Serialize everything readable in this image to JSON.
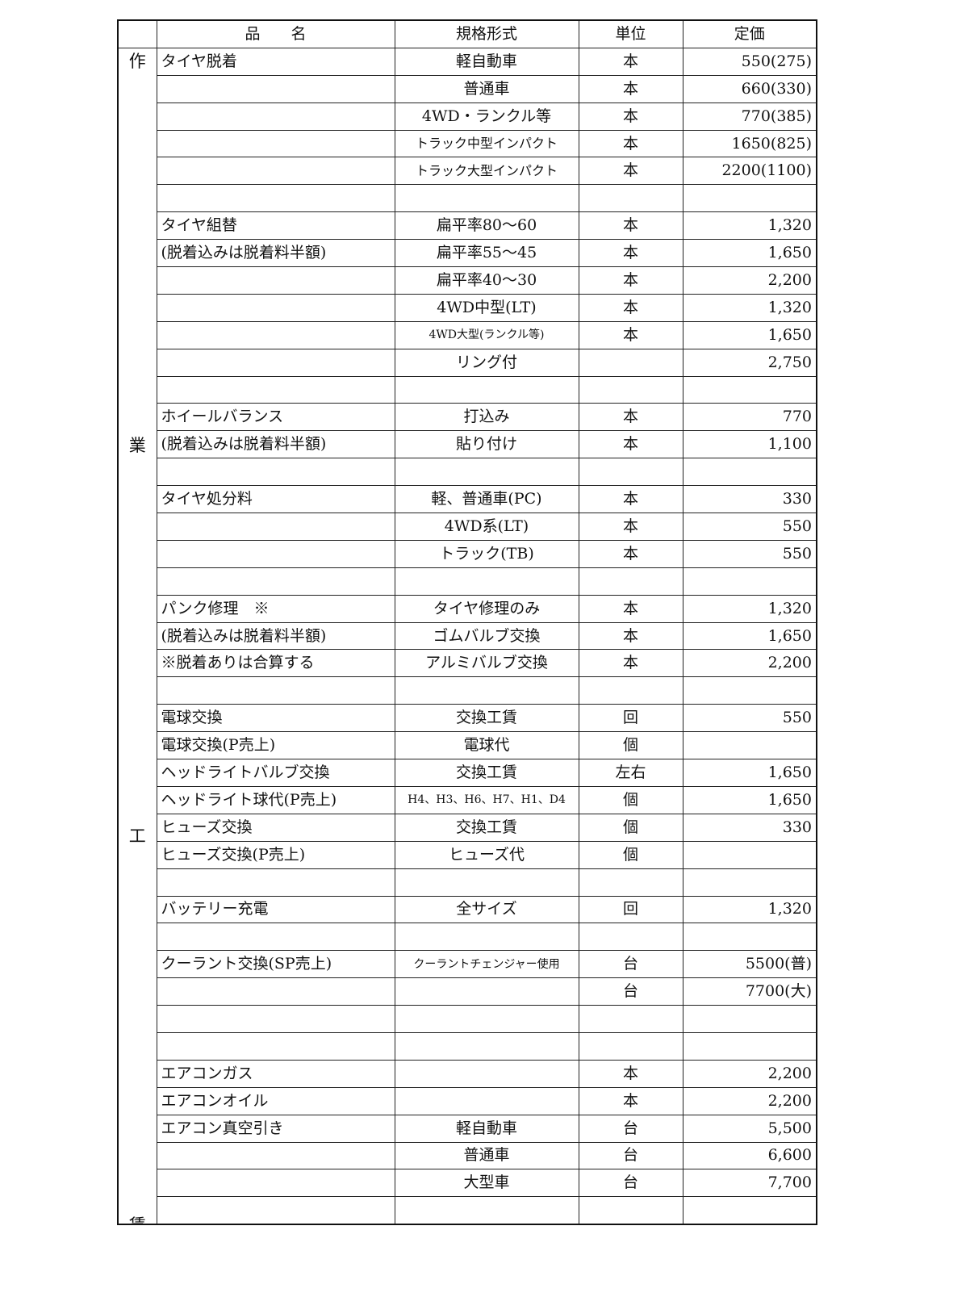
{
  "header": {
    "name": "品　　名",
    "spec": "規格形式",
    "unit": "単位",
    "price": "定価"
  },
  "side_label": [
    "作",
    "業",
    "工",
    "賃"
  ],
  "rows": [
    {
      "name": "タイヤ脱着",
      "spec": "軽自動車",
      "unit": "本",
      "price": "550(275)"
    },
    {
      "name": "",
      "spec": "普通車",
      "unit": "本",
      "price": "660(330)"
    },
    {
      "name": "",
      "spec": "4WD・ランクル等",
      "unit": "本",
      "price": "770(385)"
    },
    {
      "name": "",
      "spec": "トラック中型インパクト",
      "unit": "本",
      "price": "1650(825)"
    },
    {
      "name": "",
      "spec": "トラック大型インパクト",
      "unit": "本",
      "price": "2200(1100)"
    },
    {
      "name": "",
      "spec": "",
      "unit": "",
      "price": ""
    },
    {
      "name": "タイヤ組替",
      "spec": "扁平率80～60",
      "unit": "本",
      "price": "1,320"
    },
    {
      "name": "(脱着込みは脱着料半額)",
      "spec": "扁平率55～45",
      "unit": "本",
      "price": "1,650"
    },
    {
      "name": "",
      "spec": "扁平率40～30",
      "unit": "本",
      "price": "2,200"
    },
    {
      "name": "",
      "spec": "4WD中型(LT)",
      "unit": "本",
      "price": "1,320"
    },
    {
      "name": "",
      "spec": "4WD大型(ランクル等)",
      "unit": "本",
      "price": "1,650"
    },
    {
      "name": "",
      "spec": "リング付",
      "unit": "",
      "price": "2,750"
    },
    {
      "name": "",
      "spec": "",
      "unit": "",
      "price": ""
    },
    {
      "name": "ホイールバランス",
      "spec": "打込み",
      "unit": "本",
      "price": "770"
    },
    {
      "name": "(脱着込みは脱着料半額)",
      "spec": "貼り付け",
      "unit": "本",
      "price": "1,100"
    },
    {
      "name": "",
      "spec": "",
      "unit": "",
      "price": ""
    },
    {
      "name": "タイヤ処分料",
      "spec": "軽、普通車(PC)",
      "unit": "本",
      "price": "330"
    },
    {
      "name": "",
      "spec": "4WD系(LT)",
      "unit": "本",
      "price": "550"
    },
    {
      "name": "",
      "spec": "トラック(TB)",
      "unit": "本",
      "price": "550"
    },
    {
      "name": "",
      "spec": "",
      "unit": "",
      "price": ""
    },
    {
      "name": "パンク修理　※",
      "spec": "タイヤ修理のみ",
      "unit": "本",
      "price": "1,320"
    },
    {
      "name": "(脱着込みは脱着料半額)",
      "spec": "ゴムバルブ交換",
      "unit": "本",
      "price": "1,650"
    },
    {
      "name": "※脱着ありは合算する",
      "spec": "アルミバルブ交換",
      "unit": "本",
      "price": "2,200"
    },
    {
      "name": "",
      "spec": "",
      "unit": "",
      "price": ""
    },
    {
      "name": "電球交換",
      "spec": "交換工賃",
      "unit": "回",
      "price": "550"
    },
    {
      "name": "電球交換(P売上)",
      "spec": "電球代",
      "unit": "個",
      "price": ""
    },
    {
      "name": "ヘッドライトバルブ交換",
      "spec": "交換工賃",
      "unit": "左右",
      "price": "1,650"
    },
    {
      "name": "ヘッドライト球代(P売上)",
      "spec": "H4、H3、H6、H7、H1、D4",
      "unit": "個",
      "price": "1,650"
    },
    {
      "name": "ヒューズ交換",
      "spec": "交換工賃",
      "unit": "個",
      "price": "330"
    },
    {
      "name": "ヒューズ交換(P売上)",
      "spec": "ヒューズ代",
      "unit": "個",
      "price": ""
    },
    {
      "name": "",
      "spec": "",
      "unit": "",
      "price": ""
    },
    {
      "name": "バッテリー充電",
      "spec": "全サイズ",
      "unit": "回",
      "price": "1,320"
    },
    {
      "name": "",
      "spec": "",
      "unit": "",
      "price": ""
    },
    {
      "name": "クーラント交換(SP売上)",
      "spec": "クーラントチェンジャー使用",
      "unit": "台",
      "price": "5500(普)"
    },
    {
      "name": "",
      "spec": "",
      "unit": "台",
      "price": "7700(大)"
    },
    {
      "name": "",
      "spec": "",
      "unit": "",
      "price": ""
    },
    {
      "name": "",
      "spec": "",
      "unit": "",
      "price": ""
    },
    {
      "name": "エアコンガス",
      "spec": "",
      "unit": "本",
      "price": "2,200"
    },
    {
      "name": "エアコンオイル",
      "spec": "",
      "unit": "本",
      "price": "2,200"
    },
    {
      "name": "エアコン真空引き",
      "spec": "軽自動車",
      "unit": "台",
      "price": "5,500"
    },
    {
      "name": "",
      "spec": "普通車",
      "unit": "台",
      "price": "6,600"
    },
    {
      "name": "",
      "spec": "大型車",
      "unit": "台",
      "price": "7,700"
    },
    {
      "name": "",
      "spec": "",
      "unit": "",
      "price": ""
    }
  ]
}
